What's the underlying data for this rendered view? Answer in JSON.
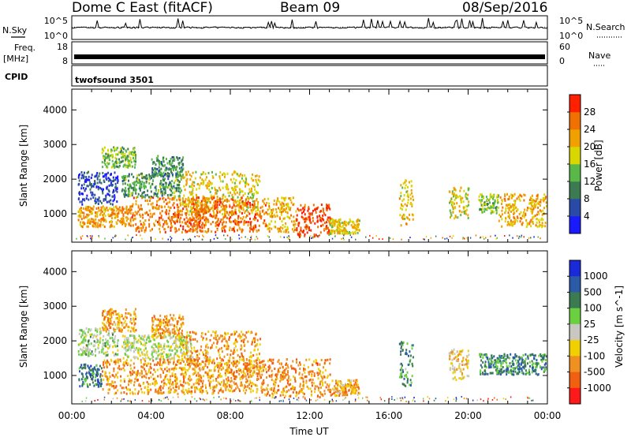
{
  "header": {
    "left": "Dome C East (fitACF)",
    "center": "Beam 09",
    "right": "08/Sep/2016"
  },
  "panels": {
    "nsky_label": "N.Sky",
    "nsearch_label": "N.Search",
    "noise_ticks": [
      "10^5",
      "10^0"
    ],
    "freq_label": "Freq.",
    "freq_unit": "[MHz]",
    "freq_ticks": [
      "18",
      "8"
    ],
    "nave_label": "Nave",
    "nave_ticks": [
      "60",
      "0"
    ],
    "cpid_label": "CPID",
    "cpid_value": "twofsound 3501"
  },
  "axes": {
    "ylabel": "Slant Range [km]",
    "xlabel": "Time UT",
    "y_ticks": [
      "1000",
      "2000",
      "3000",
      "4000"
    ],
    "x_ticks": [
      "00:00",
      "04:00",
      "08:00",
      "12:00",
      "16:00",
      "20:00",
      "00:00"
    ]
  },
  "chart_data": [
    {
      "type": "heatmap",
      "parameter": "Power",
      "colorbar_label": "Power [dB]",
      "colorbar_ticks": [
        "4",
        "8",
        "12",
        "16",
        "20",
        "24",
        "28"
      ],
      "colorbar_colors": [
        "#1a1aff",
        "#2a4aa8",
        "#3c7a52",
        "#58b848",
        "#d8d800",
        "#f0a000",
        "#f07000",
        "#ff2000"
      ],
      "xlabel": "Time UT",
      "ylabel": "Slant Range [km]",
      "xlim": [
        "00:00",
        "24:00"
      ],
      "ylim": [
        180,
        4600
      ],
      "blobs": [
        {
          "t0": 0.3,
          "t1": 3.0,
          "r0": 650,
          "r1": 1250,
          "level": 0.72
        },
        {
          "t0": 0.3,
          "t1": 2.3,
          "r0": 1300,
          "r1": 2250,
          "level": 0.18
        },
        {
          "t0": 1.5,
          "t1": 3.2,
          "r0": 2350,
          "r1": 2950,
          "level": 0.45
        },
        {
          "t0": 2.5,
          "t1": 5.5,
          "r0": 1500,
          "r1": 2200,
          "level": 0.38
        },
        {
          "t0": 4.0,
          "t1": 5.6,
          "r0": 2100,
          "r1": 2700,
          "level": 0.35
        },
        {
          "t0": 3.0,
          "t1": 7.0,
          "r0": 500,
          "r1": 1500,
          "level": 0.78
        },
        {
          "t0": 5.5,
          "t1": 9.5,
          "r0": 1000,
          "r1": 2250,
          "level": 0.6
        },
        {
          "t0": 6.0,
          "t1": 9.8,
          "r0": 500,
          "r1": 1500,
          "level": 0.82
        },
        {
          "t0": 9.8,
          "t1": 11.3,
          "r0": 500,
          "r1": 1500,
          "level": 0.65
        },
        {
          "t0": 11.3,
          "t1": 13.0,
          "r0": 350,
          "r1": 1300,
          "level": 0.88
        },
        {
          "t0": 13.0,
          "t1": 14.5,
          "r0": 450,
          "r1": 900,
          "level": 0.6
        },
        {
          "t0": 16.5,
          "t1": 17.2,
          "r0": 700,
          "r1": 2000,
          "level": 0.62
        },
        {
          "t0": 19.0,
          "t1": 20.0,
          "r0": 900,
          "r1": 1800,
          "level": 0.58
        },
        {
          "t0": 20.5,
          "t1": 21.5,
          "r0": 1050,
          "r1": 1600,
          "level": 0.48
        },
        {
          "t0": 21.5,
          "t1": 24.0,
          "r0": 650,
          "r1": 1600,
          "level": 0.68
        }
      ]
    },
    {
      "type": "heatmap",
      "parameter": "Velocity",
      "colorbar_label": "Velocity [m s^-1]",
      "colorbar_ticks": [
        "1000",
        "500",
        "100",
        "25",
        "-25",
        "-100",
        "-500",
        "-1000"
      ],
      "colorbar_colors": [
        "#1a2ad8",
        "#2a5aa8",
        "#3c7a52",
        "#6ad040",
        "#c8c8c0",
        "#f0d000",
        "#f09020",
        "#f06010",
        "#ff1a1a"
      ],
      "xlabel": "Time UT",
      "ylabel": "Slant Range [km]",
      "xlim": [
        "00:00",
        "24:00"
      ],
      "ylim": [
        180,
        4600
      ],
      "blobs": [
        {
          "t0": 0.3,
          "t1": 1.5,
          "r0": 700,
          "r1": 1350,
          "level": 0.25
        },
        {
          "t0": 0.3,
          "t1": 2.3,
          "r0": 1600,
          "r1": 2400,
          "level": 0.44
        },
        {
          "t0": 1.5,
          "t1": 3.2,
          "r0": 2300,
          "r1": 2950,
          "level": 0.7
        },
        {
          "t0": 2.5,
          "t1": 6.0,
          "r0": 1500,
          "r1": 2200,
          "level": 0.5
        },
        {
          "t0": 4.0,
          "t1": 5.6,
          "r0": 2100,
          "r1": 2800,
          "level": 0.7
        },
        {
          "t0": 1.5,
          "t1": 9.5,
          "r0": 500,
          "r1": 1500,
          "level": 0.72
        },
        {
          "t0": 5.5,
          "t1": 9.5,
          "r0": 1000,
          "r1": 2300,
          "level": 0.7
        },
        {
          "t0": 9.5,
          "t1": 13.0,
          "r0": 400,
          "r1": 1500,
          "level": 0.74
        },
        {
          "t0": 13.0,
          "t1": 14.5,
          "r0": 450,
          "r1": 900,
          "level": 0.68
        },
        {
          "t0": 16.5,
          "t1": 17.2,
          "r0": 700,
          "r1": 2000,
          "level": 0.3
        },
        {
          "t0": 19.0,
          "t1": 20.0,
          "r0": 900,
          "r1": 1800,
          "level": 0.6
        },
        {
          "t0": 20.5,
          "t1": 24.0,
          "r0": 1050,
          "r1": 1650,
          "level": 0.27
        }
      ]
    }
  ]
}
